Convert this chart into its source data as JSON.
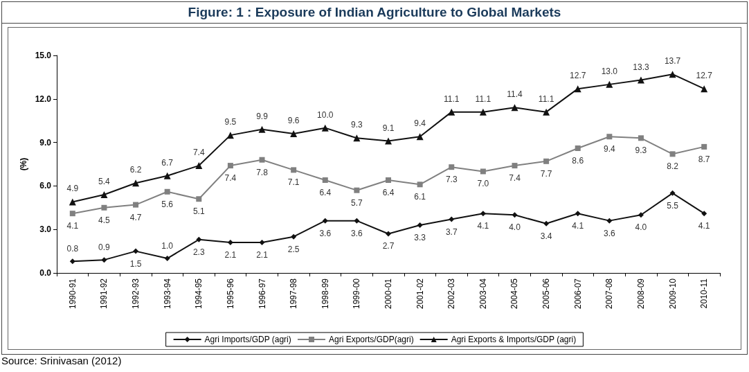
{
  "chart_data": {
    "type": "line",
    "title": "Figure: 1 : Exposure of Indian Agriculture to Global Markets",
    "ylabel": "(%)",
    "categories": [
      "1990-91",
      "1991-92",
      "1992-93",
      "1993-94",
      "1994-95",
      "1995-96",
      "1996-97",
      "1997-98",
      "1998-99",
      "1999-00",
      "2000-01",
      "2001-02",
      "2002-03",
      "2003-04",
      "2004-05",
      "2005-06",
      "2006-07",
      "2007-08",
      "2008-09",
      "2009-10",
      "2010-11"
    ],
    "series": [
      {
        "name": "Agri Imports/GDP (agri)",
        "color": "#111111",
        "marker": "diamond",
        "values": [
          0.8,
          0.9,
          1.5,
          1.0,
          2.3,
          2.1,
          2.1,
          2.5,
          3.6,
          3.6,
          2.7,
          3.3,
          3.7,
          4.1,
          4.0,
          3.4,
          4.1,
          3.6,
          4.0,
          5.5,
          4.1
        ],
        "value_labels": [
          "0.8",
          "0.9",
          "1.5",
          "1.0",
          "2.3",
          "2.1",
          "2.1",
          "2.5",
          "3.6",
          "3.6",
          "2.7",
          "3.3",
          "3.7",
          "4.1",
          "4.0",
          "3.4",
          "4.1",
          "3.6",
          "4.0",
          "5.5",
          "4.1"
        ]
      },
      {
        "name": "Agri Exports/GDP(agri)",
        "color": "#808080",
        "marker": "square",
        "values": [
          4.1,
          4.5,
          4.7,
          5.6,
          5.1,
          7.4,
          7.8,
          7.1,
          6.4,
          5.7,
          6.4,
          6.1,
          7.3,
          7.0,
          7.4,
          7.7,
          8.6,
          9.4,
          9.3,
          8.2,
          8.7
        ],
        "value_labels": [
          "4.1",
          "4.5",
          "4.7",
          "5.6",
          "5.1",
          "7.4",
          "7.8",
          "7.1",
          "6.4",
          "5.7",
          "6.4",
          "6.1",
          "7.3",
          "7.0",
          "7.4",
          "7.7",
          "8.6",
          "9.4",
          "9.3",
          "8.2",
          "8.7"
        ]
      },
      {
        "name": "Agri Exports & Imports/GDP (agri)",
        "color": "#111111",
        "marker": "triangle",
        "values": [
          4.9,
          5.4,
          6.2,
          6.7,
          7.4,
          9.5,
          9.9,
          9.6,
          10.0,
          9.3,
          9.1,
          9.4,
          11.1,
          11.1,
          11.4,
          11.1,
          12.7,
          13.0,
          13.3,
          13.7,
          12.7
        ],
        "value_labels": [
          "4.9",
          "5.4",
          "6.2",
          "6.7",
          "7.4",
          "9.5",
          "9.9",
          "9.6",
          "10.0",
          "9.3",
          "9.1",
          "9.4",
          "11.1",
          "11.1",
          "11.4",
          "11.1",
          "12.7",
          "13.0",
          "13.3",
          "13.7",
          "12.7"
        ]
      }
    ],
    "ylim": [
      0,
      15
    ],
    "yticks": [
      {
        "value": 0,
        "label": "0.0"
      },
      {
        "value": 3,
        "label": "3.0"
      },
      {
        "value": 6,
        "label": "6.0"
      },
      {
        "value": 9,
        "label": "9.0"
      },
      {
        "value": 12,
        "label": "12.0"
      },
      {
        "value": 15,
        "label": "15.0"
      }
    ],
    "legend": "bottom",
    "line_style": "solid",
    "annotations": [
      "Source: Srinivasan (2012)"
    ]
  }
}
